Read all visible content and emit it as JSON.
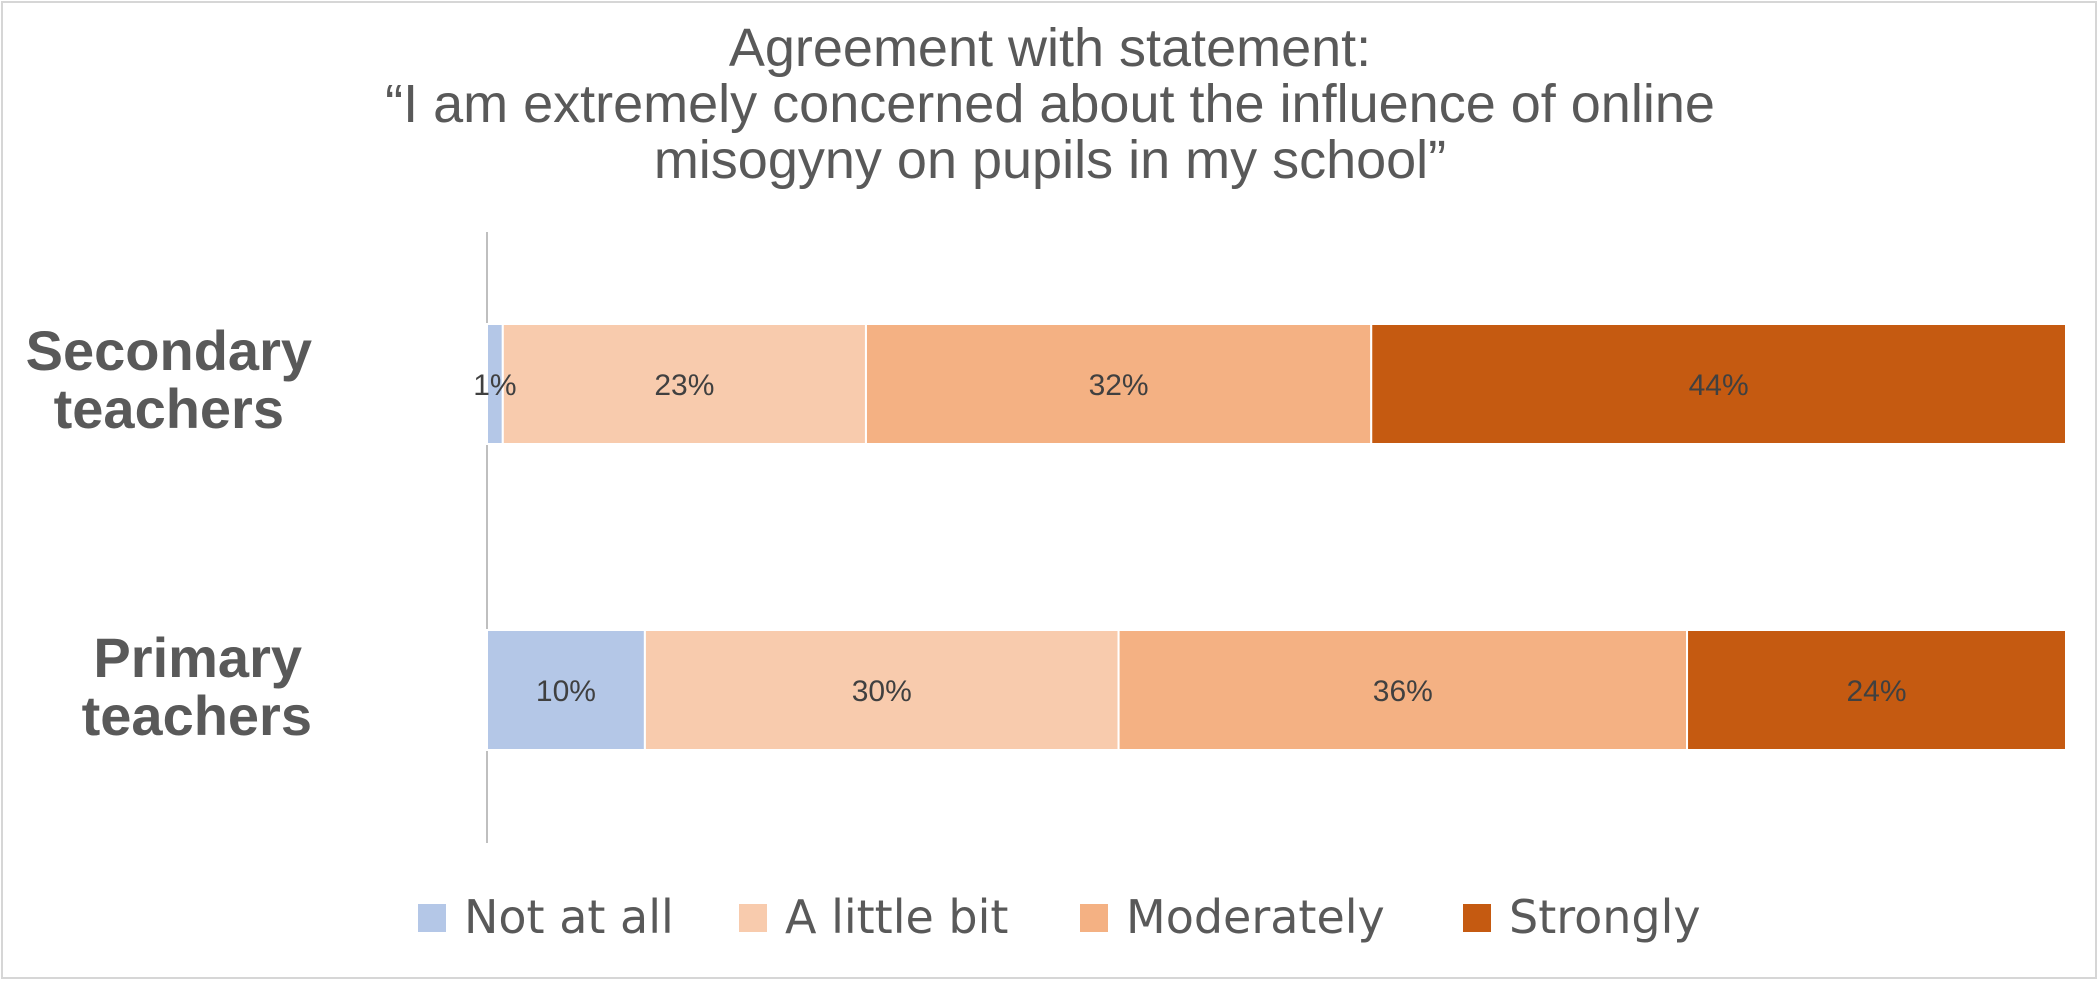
{
  "chart_data": {
    "type": "bar",
    "orientation": "horizontal",
    "stacked": true,
    "title": "Agreement with statement:",
    "subtitle_lines": [
      "“I am extremely concerned about the influence of online",
      "misogyny on pupils in my school”"
    ],
    "categories": [
      "Secondary teachers",
      "Primary teachers"
    ],
    "category_label_lines": [
      [
        "Secondary",
        "teachers"
      ],
      [
        "Primary",
        "teachers"
      ]
    ],
    "series": [
      {
        "name": "Not at all",
        "values": [
          1,
          10
        ],
        "labels": [
          "1%",
          "10%"
        ],
        "color": "#b4c7e7"
      },
      {
        "name": "A little bit",
        "values": [
          23,
          30
        ],
        "labels": [
          "23%",
          "30%"
        ],
        "color": "#f8cbad"
      },
      {
        "name": "Moderately",
        "values": [
          32,
          36
        ],
        "labels": [
          "32%",
          "36%"
        ],
        "color": "#f4b183"
      },
      {
        "name": "Strongly",
        "values": [
          44,
          24
        ],
        "labels": [
          "44%",
          "24%"
        ],
        "color": "#c55a11"
      }
    ],
    "xlim": [
      0,
      100
    ],
    "grid": false,
    "legend_position": "bottom"
  }
}
